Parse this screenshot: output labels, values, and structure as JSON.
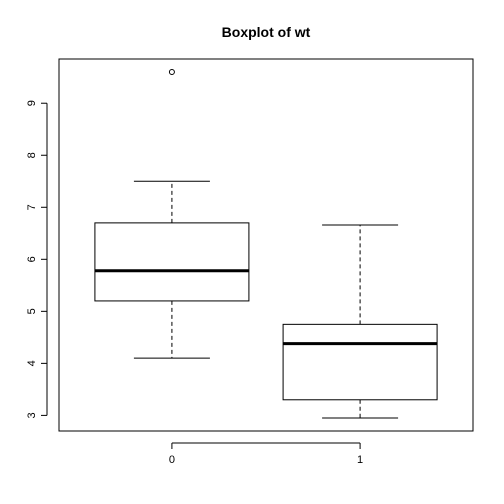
{
  "chart_data": {
    "type": "boxplot",
    "title": "Boxplot of wt",
    "xlabel": "",
    "ylabel": "",
    "categories": [
      "0",
      "1"
    ],
    "y_ticks": [
      "3",
      "4",
      "5",
      "6",
      "7",
      "8",
      "9"
    ],
    "ylim": [
      2.7,
      9.85
    ],
    "grid": false,
    "boxes": [
      {
        "category": "0",
        "whisker_low": 4.1,
        "q1": 5.2,
        "median": 5.78,
        "q3": 6.7,
        "whisker_high": 7.5,
        "outliers": [
          9.6
        ]
      },
      {
        "category": "1",
        "whisker_low": 2.95,
        "q1": 3.3,
        "median": 4.38,
        "q3": 4.75,
        "whisker_high": 6.66,
        "outliers": []
      }
    ]
  }
}
